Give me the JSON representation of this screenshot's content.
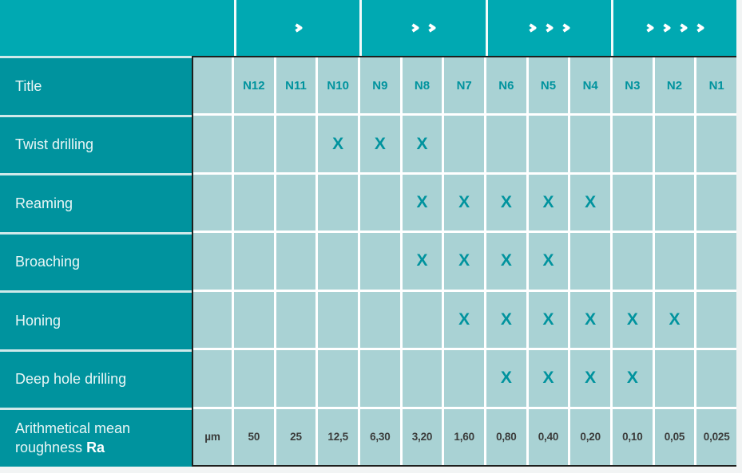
{
  "colors": {
    "header_teal": "#00a9b2",
    "label_teal": "#00939e",
    "cell_light": "#a9d2d4",
    "accent_text": "#00939e",
    "value_text": "#3b3c3b",
    "grid_line": "#ffffff",
    "dark_border": "#1e1f1d",
    "label_text": "#e9f6f6",
    "chevron": "#ffffff"
  },
  "chart_data": {
    "type": "table",
    "title_cell": "Title",
    "grades": [
      "N12",
      "N11",
      "N10",
      "N9",
      "N8",
      "N7",
      "N6",
      "N5",
      "N4",
      "N3",
      "N2",
      "N1"
    ],
    "header_groups": [
      {
        "name": "range-1",
        "chevrons": 1,
        "grades_spanned": [
          "N12",
          "N11",
          "N10"
        ]
      },
      {
        "name": "range-2",
        "chevrons": 2,
        "grades_spanned": [
          "N9",
          "N8",
          "N7"
        ]
      },
      {
        "name": "range-3",
        "chevrons": 3,
        "grades_spanned": [
          "N6",
          "N5",
          "N4"
        ]
      },
      {
        "name": "range-4",
        "chevrons": 4,
        "grades_spanned": [
          "N3",
          "N2",
          "N1"
        ]
      }
    ],
    "mark_glyph": "X",
    "processes": [
      {
        "label": "Twist drilling",
        "marks": [
          "N10",
          "N9",
          "N8"
        ]
      },
      {
        "label": "Reaming",
        "marks": [
          "N8",
          "N7",
          "N6",
          "N5",
          "N4"
        ]
      },
      {
        "label": "Broaching",
        "marks": [
          "N8",
          "N7",
          "N6",
          "N5"
        ]
      },
      {
        "label": "Honing",
        "marks": [
          "N7",
          "N6",
          "N5",
          "N4",
          "N3",
          "N2"
        ]
      },
      {
        "label": "Deep hole drilling",
        "marks": [
          "N6",
          "N5",
          "N4",
          "N3"
        ]
      }
    ],
    "ra_row": {
      "label_main": "Arithmetical mean",
      "label_main2": "roughness ",
      "label_bold": "Ra",
      "unit": "µm",
      "values": [
        "50",
        "25",
        "12,5",
        "6,30",
        "3,20",
        "1,60",
        "0,80",
        "0,40",
        "0,20",
        "0,10",
        "0,05",
        "0,025"
      ]
    }
  }
}
